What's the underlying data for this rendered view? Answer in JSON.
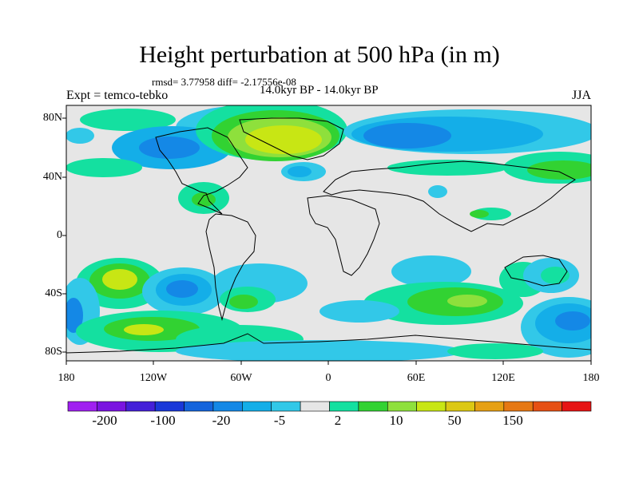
{
  "title": "Height perturbation at 500 hPa (in m)",
  "stats": "rmsd= 3.77958 diff= -2.17556e-08",
  "subtitle": "14.0kyr BP - 14.0kyr BP",
  "experiment": "Expt = temco-tebko",
  "season": "JJA",
  "lat_labels": [
    "80N",
    "40N",
    "0",
    "40S",
    "80S"
  ],
  "lon_labels": [
    "180",
    "120W",
    "60W",
    "0",
    "60E",
    "120E",
    "180"
  ],
  "colorbar": {
    "colors": [
      "#a020f0",
      "#7a14e0",
      "#4420d8",
      "#1a38d8",
      "#1464dc",
      "#1488e6",
      "#14aee8",
      "#32c8e8",
      "#e6e6e6",
      "#14e0a0",
      "#32d232",
      "#8ee03c",
      "#c8e614",
      "#dcc814",
      "#e6a014",
      "#e67814",
      "#e65014",
      "#e61414"
    ],
    "labels": [
      "-200",
      "-100",
      "-20",
      "-5",
      "2",
      "10",
      "50",
      "150"
    ]
  },
  "colors": {
    "background": "#e6e6e6",
    "blue_light": "#14aee8",
    "blue_mid": "#1488e6",
    "cyan": "#32c8e8",
    "green_teal": "#14e0a0",
    "green": "#32d232",
    "yellow_green": "#c8e614"
  }
}
